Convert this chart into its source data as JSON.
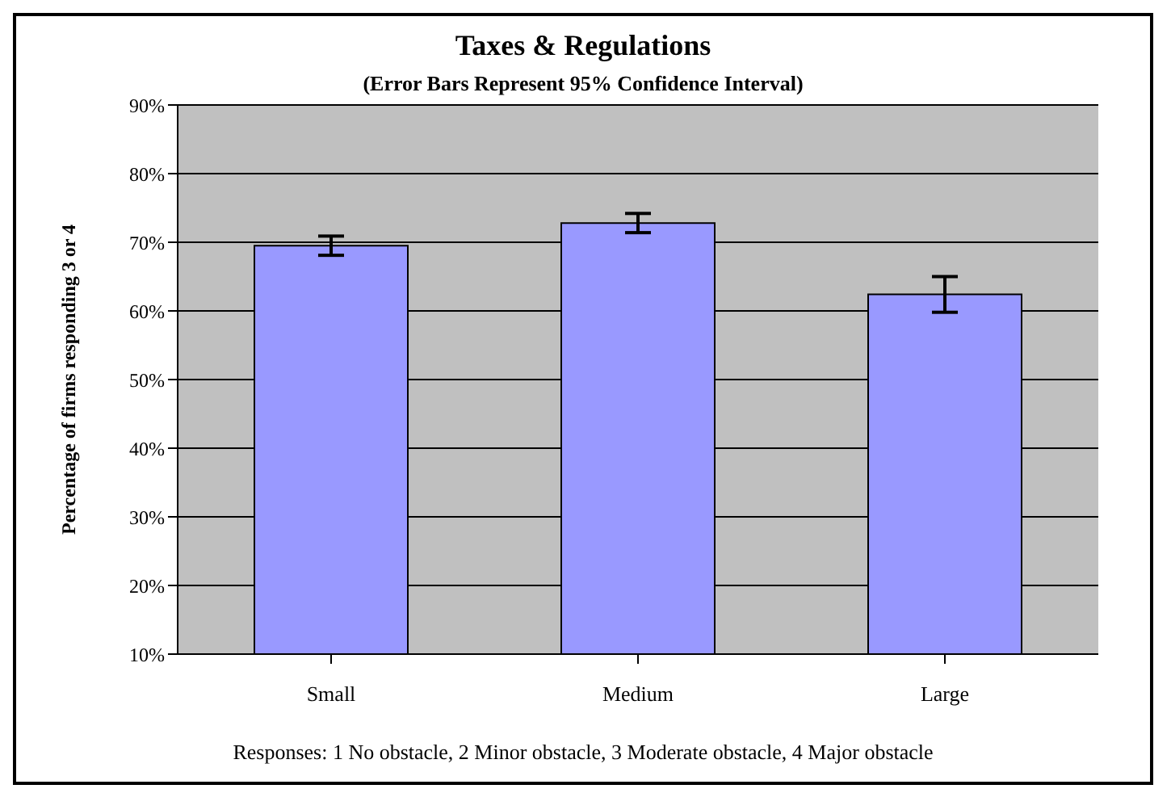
{
  "chart_data": {
    "type": "bar",
    "title": "Taxes & Regulations",
    "subtitle": "(Error Bars Represent 95% Confidence  Interval)",
    "ylabel": "Percentage of firms responding 3 or 4",
    "categories": [
      "Small",
      "Medium",
      "Large"
    ],
    "values": [
      69.5,
      72.8,
      62.4
    ],
    "errors": [
      1.4,
      1.4,
      2.6
    ],
    "color": "#9999ff",
    "ylim": [
      10,
      90
    ],
    "yticks": [
      {
        "value": 10,
        "label": "10%"
      },
      {
        "value": 20,
        "label": "20%"
      },
      {
        "value": 30,
        "label": "30%"
      },
      {
        "value": 40,
        "label": "40%"
      },
      {
        "value": 50,
        "label": "50%"
      },
      {
        "value": 60,
        "label": "60%"
      },
      {
        "value": 70,
        "label": "70%"
      },
      {
        "value": 80,
        "label": "80%"
      },
      {
        "value": 90,
        "label": "90%"
      }
    ],
    "grid": "y",
    "annotations": [
      "Responses: 1 No obstacle, 2 Minor obstacle, 3 Moderate obstacle,  4 Major obstacle"
    ]
  }
}
